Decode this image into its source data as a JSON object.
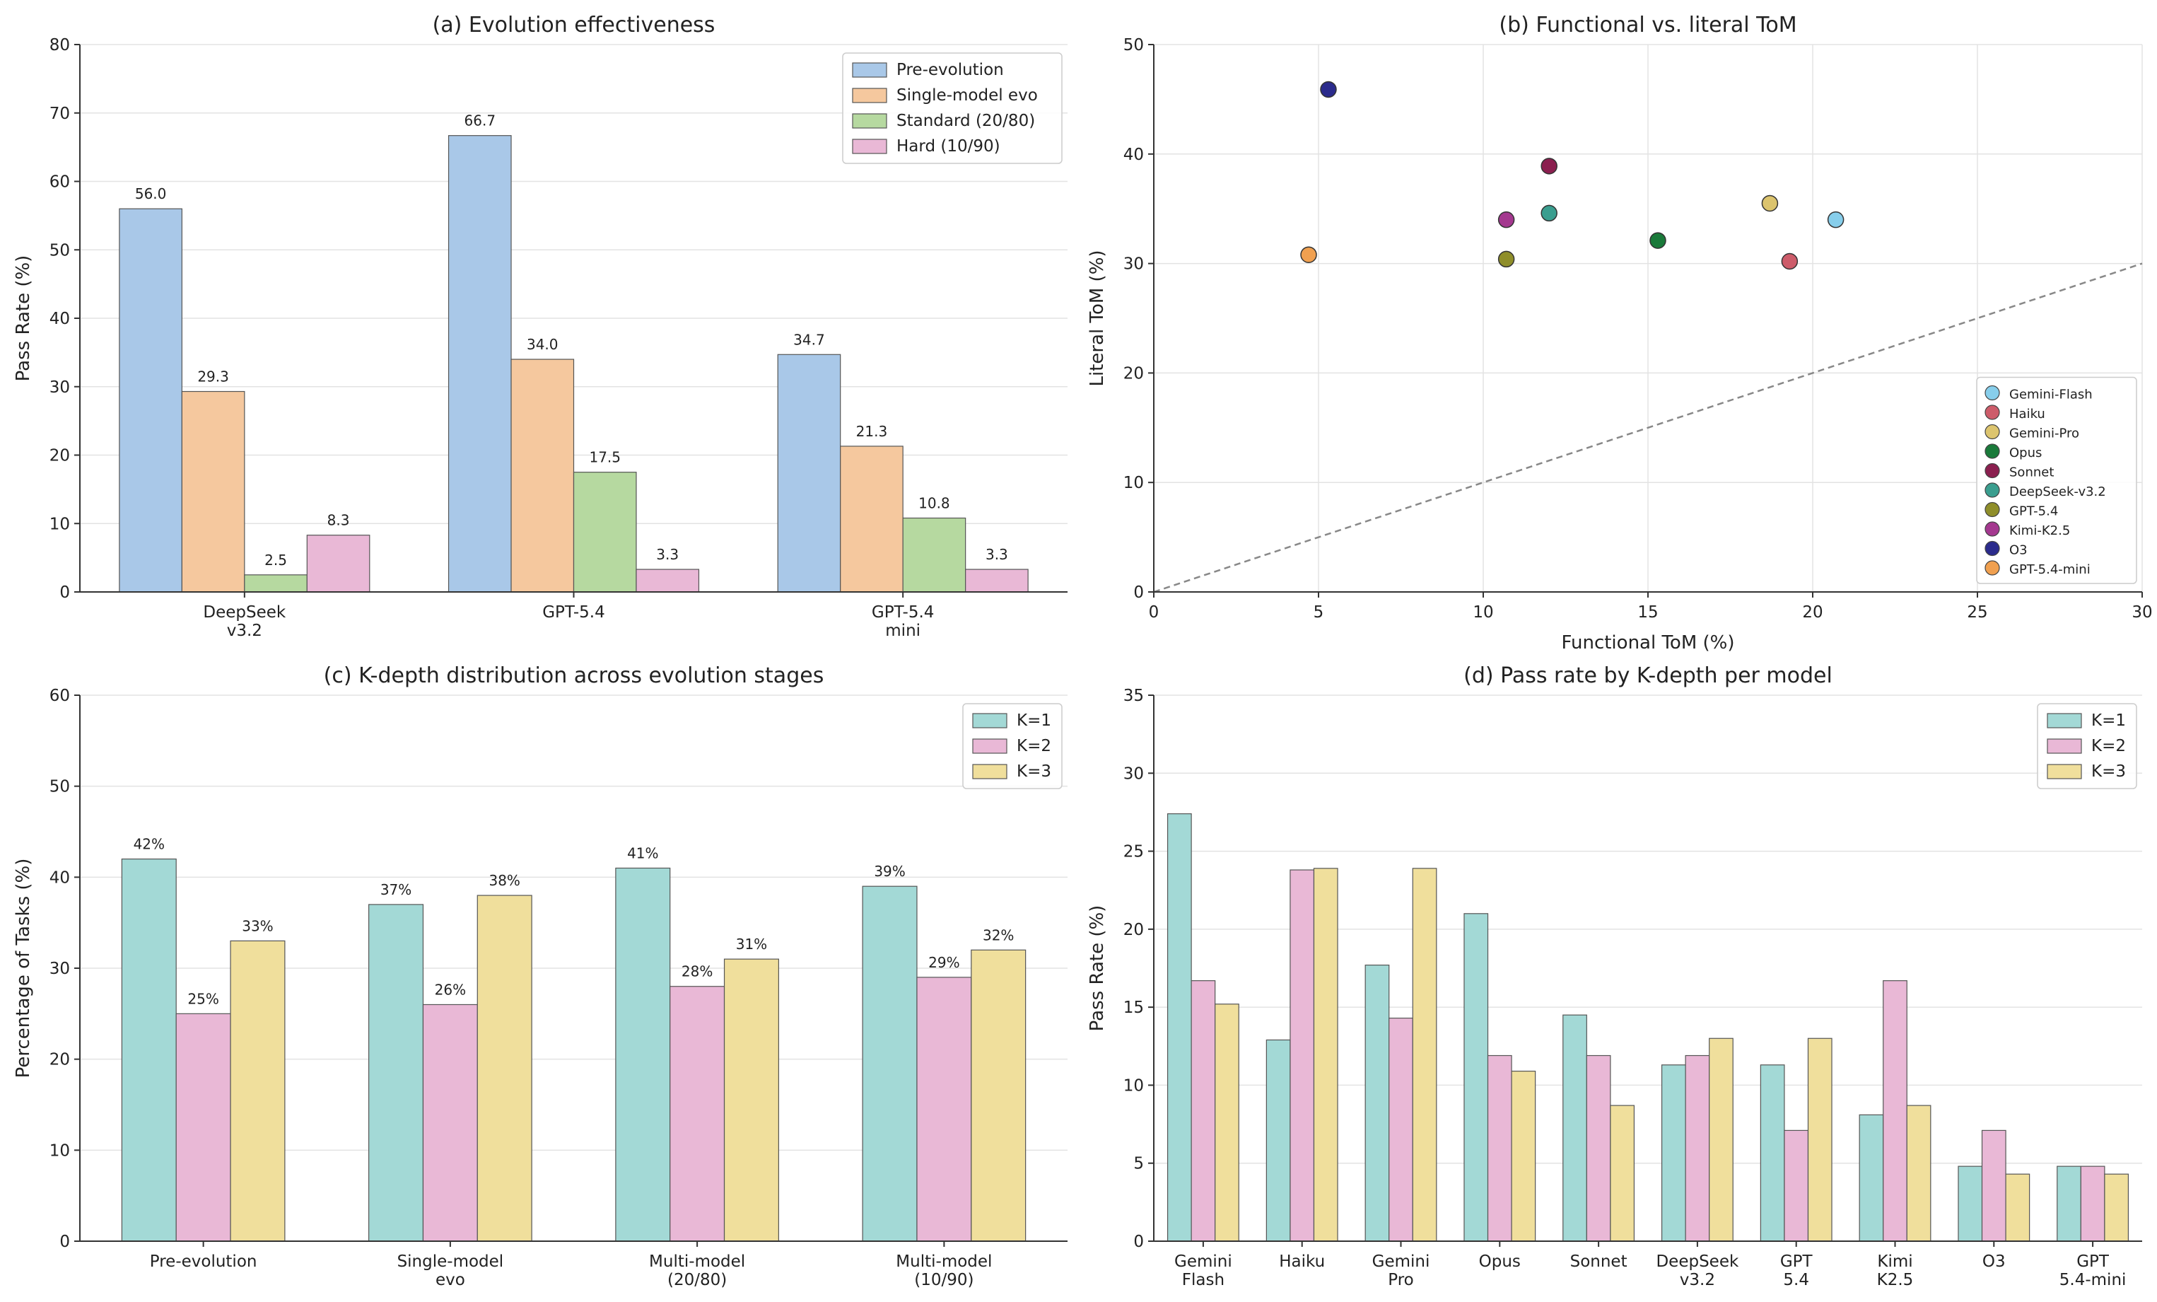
{
  "chart_data": [
    {
      "id": "a",
      "type": "bar",
      "title": "(a) Evolution effectiveness",
      "xlabel": "",
      "ylabel": "Pass Rate (%)",
      "ylim": [
        0,
        80
      ],
      "yticks": [
        0,
        10,
        20,
        30,
        40,
        50,
        60,
        70,
        80
      ],
      "grid": true,
      "legend_position": "top-right",
      "categories": [
        [
          "DeepSeek",
          "v3.2"
        ],
        [
          "GPT-5.4"
        ],
        [
          "GPT-5.4",
          "mini"
        ]
      ],
      "series": [
        {
          "name": "Pre-evolution",
          "color": "#a9c8e8",
          "values": [
            56.0,
            66.7,
            34.7
          ],
          "labels": [
            "56.0",
            "66.7",
            "34.7"
          ]
        },
        {
          "name": "Single-model evo",
          "color": "#f5c89e",
          "values": [
            29.3,
            34.0,
            21.3
          ],
          "labels": [
            "29.3",
            "34.0",
            "21.3"
          ]
        },
        {
          "name": "Standard (20/80)",
          "color": "#b6d9a0",
          "values": [
            2.5,
            17.5,
            10.8
          ],
          "labels": [
            "2.5",
            "17.5",
            "10.8"
          ]
        },
        {
          "name": "Hard (10/90)",
          "color": "#e9b8d6",
          "values": [
            8.3,
            3.3,
            3.3
          ],
          "labels": [
            "8.3",
            "3.3",
            "3.3"
          ]
        }
      ]
    },
    {
      "id": "b",
      "type": "scatter",
      "title": "(b) Functional vs. literal ToM",
      "xlabel": "Functional ToM (%)",
      "ylabel": "Literal ToM (%)",
      "xlim": [
        0,
        30
      ],
      "ylim": [
        0,
        50
      ],
      "xticks": [
        0,
        5,
        10,
        15,
        20,
        25,
        30
      ],
      "yticks": [
        0,
        10,
        20,
        30,
        40,
        50
      ],
      "grid": true,
      "diagonal_reference": "dashed y = x",
      "legend_position": "bottom-right",
      "points": [
        {
          "name": "Gemini-Flash",
          "color": "#87ceeb",
          "x": 20.7,
          "y": 34.0
        },
        {
          "name": "Haiku",
          "color": "#cd5c6a",
          "x": 19.3,
          "y": 30.2
        },
        {
          "name": "Gemini-Pro",
          "color": "#dcc46e",
          "x": 18.7,
          "y": 35.5
        },
        {
          "name": "Opus",
          "color": "#1a7a3a",
          "x": 15.3,
          "y": 32.1
        },
        {
          "name": "Sonnet",
          "color": "#8b1f4f",
          "x": 12.0,
          "y": 38.9
        },
        {
          "name": "DeepSeek-v3.2",
          "color": "#3a9e8f",
          "x": 12.0,
          "y": 34.6
        },
        {
          "name": "GPT-5.4",
          "color": "#8f8e2a",
          "x": 10.7,
          "y": 30.4
        },
        {
          "name": "Kimi-K2.5",
          "color": "#a4388f",
          "x": 10.7,
          "y": 34.0
        },
        {
          "name": "O3",
          "color": "#2b2b8c",
          "x": 5.3,
          "y": 45.9
        },
        {
          "name": "GPT-5.4-mini",
          "color": "#f0a050",
          "x": 4.7,
          "y": 30.8
        }
      ]
    },
    {
      "id": "c",
      "type": "bar",
      "title": "(c) K-depth distribution across evolution stages",
      "xlabel": "",
      "ylabel": "Percentage of Tasks (%)",
      "ylim": [
        0,
        60
      ],
      "yticks": [
        0,
        10,
        20,
        30,
        40,
        50,
        60
      ],
      "grid": true,
      "legend_position": "top-right",
      "categories": [
        [
          "Pre-evolution"
        ],
        [
          "Single-model",
          "evo"
        ],
        [
          "Multi-model",
          "(20/80)"
        ],
        [
          "Multi-model",
          "(10/90)"
        ]
      ],
      "series": [
        {
          "name": "K=1",
          "color": "#a3d9d6",
          "values": [
            42,
            37,
            41,
            39
          ],
          "labels": [
            "42%",
            "37%",
            "41%",
            "39%"
          ]
        },
        {
          "name": "K=2",
          "color": "#e9b8d6",
          "values": [
            25,
            26,
            28,
            29
          ],
          "labels": [
            "25%",
            "26%",
            "28%",
            "29%"
          ]
        },
        {
          "name": "K=3",
          "color": "#f0df9c",
          "values": [
            33,
            38,
            31,
            32
          ],
          "labels": [
            "33%",
            "38%",
            "31%",
            "32%"
          ]
        }
      ]
    },
    {
      "id": "d",
      "type": "bar",
      "title": "(d) Pass rate by K-depth per model",
      "xlabel": "",
      "ylabel": "Pass Rate (%)",
      "ylim": [
        0,
        35
      ],
      "yticks": [
        0,
        5,
        10,
        15,
        20,
        25,
        30,
        35
      ],
      "grid": true,
      "legend_position": "top-right",
      "categories": [
        [
          "Gemini",
          "Flash"
        ],
        [
          "Haiku"
        ],
        [
          "Gemini",
          "Pro"
        ],
        [
          "Opus"
        ],
        [
          "Sonnet"
        ],
        [
          "DeepSeek",
          "v3.2"
        ],
        [
          "GPT",
          "5.4"
        ],
        [
          "Kimi",
          "K2.5"
        ],
        [
          "O3"
        ],
        [
          "GPT",
          "5.4-mini"
        ]
      ],
      "series": [
        {
          "name": "K=1",
          "color": "#a3d9d6",
          "values": [
            27.4,
            12.9,
            17.7,
            21.0,
            14.5,
            11.3,
            11.3,
            8.1,
            4.8,
            4.8
          ]
        },
        {
          "name": "K=2",
          "color": "#e9b8d6",
          "values": [
            16.7,
            23.8,
            14.3,
            11.9,
            11.9,
            11.9,
            7.1,
            16.7,
            7.1,
            4.8
          ]
        },
        {
          "name": "K=3",
          "color": "#f0df9c",
          "values": [
            15.2,
            23.9,
            23.9,
            10.9,
            8.7,
            13.0,
            13.0,
            8.7,
            4.3,
            4.3
          ]
        }
      ]
    }
  ]
}
